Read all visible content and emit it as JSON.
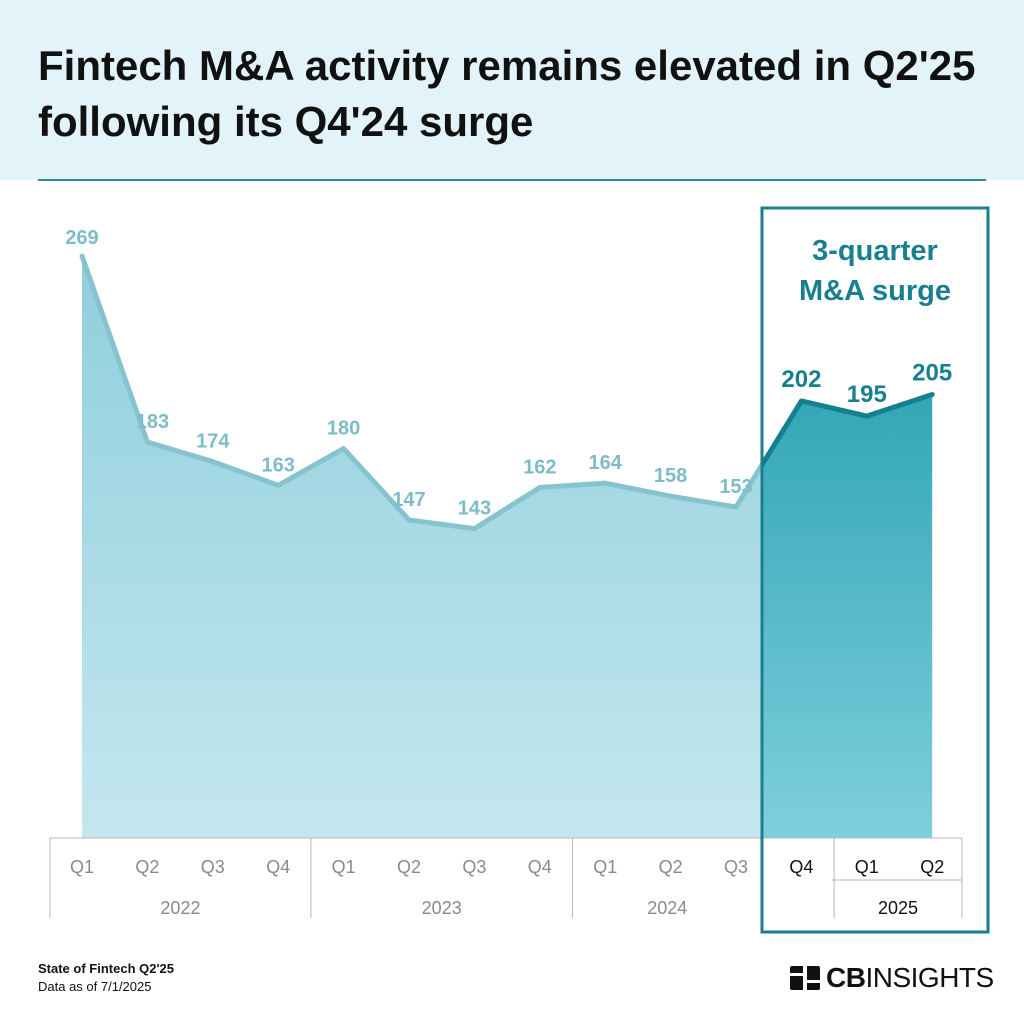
{
  "header": {
    "title": "Fintech M&A activity remains elevated in Q2'25 following its Q4'24 surge"
  },
  "highlight": {
    "label_line1": "3-quarter",
    "label_line2": "M&A surge"
  },
  "footer": {
    "source": "State of Fintech Q2'25",
    "as_of": "Data as of 7/1/2025",
    "logo_bold": "CB",
    "logo_rest": "INSIGHTS"
  },
  "colors": {
    "area_light_top": "#8fcfdc",
    "area_light_bottom": "#c4e7ef",
    "area_dark_top": "#1a9aaa",
    "area_dark_bottom": "#7fcfdc",
    "line_light": "#86c3cf",
    "line_dark": "#167f8d",
    "label_light": "#7fbcc9",
    "label_dark": "#17808f",
    "highlight_border": "#1a7f8d"
  },
  "chart_data": {
    "type": "area",
    "years": [
      {
        "label": "2022",
        "quarters": [
          "Q1",
          "Q2",
          "Q3",
          "Q4"
        ]
      },
      {
        "label": "2023",
        "quarters": [
          "Q1",
          "Q2",
          "Q3",
          "Q4"
        ]
      },
      {
        "label": "2024",
        "quarters": [
          "Q1",
          "Q2",
          "Q3",
          "Q4"
        ]
      },
      {
        "label": "2025",
        "quarters": [
          "Q1",
          "Q2"
        ]
      }
    ],
    "categories": [
      "Q1",
      "Q2",
      "Q3",
      "Q4",
      "Q1",
      "Q2",
      "Q3",
      "Q4",
      "Q1",
      "Q2",
      "Q3",
      "Q4",
      "Q1",
      "Q2"
    ],
    "values": [
      269,
      183,
      174,
      163,
      180,
      147,
      143,
      162,
      164,
      158,
      153,
      202,
      195,
      205
    ],
    "highlight_start_index": 11,
    "ylim": [
      0,
      280
    ]
  }
}
